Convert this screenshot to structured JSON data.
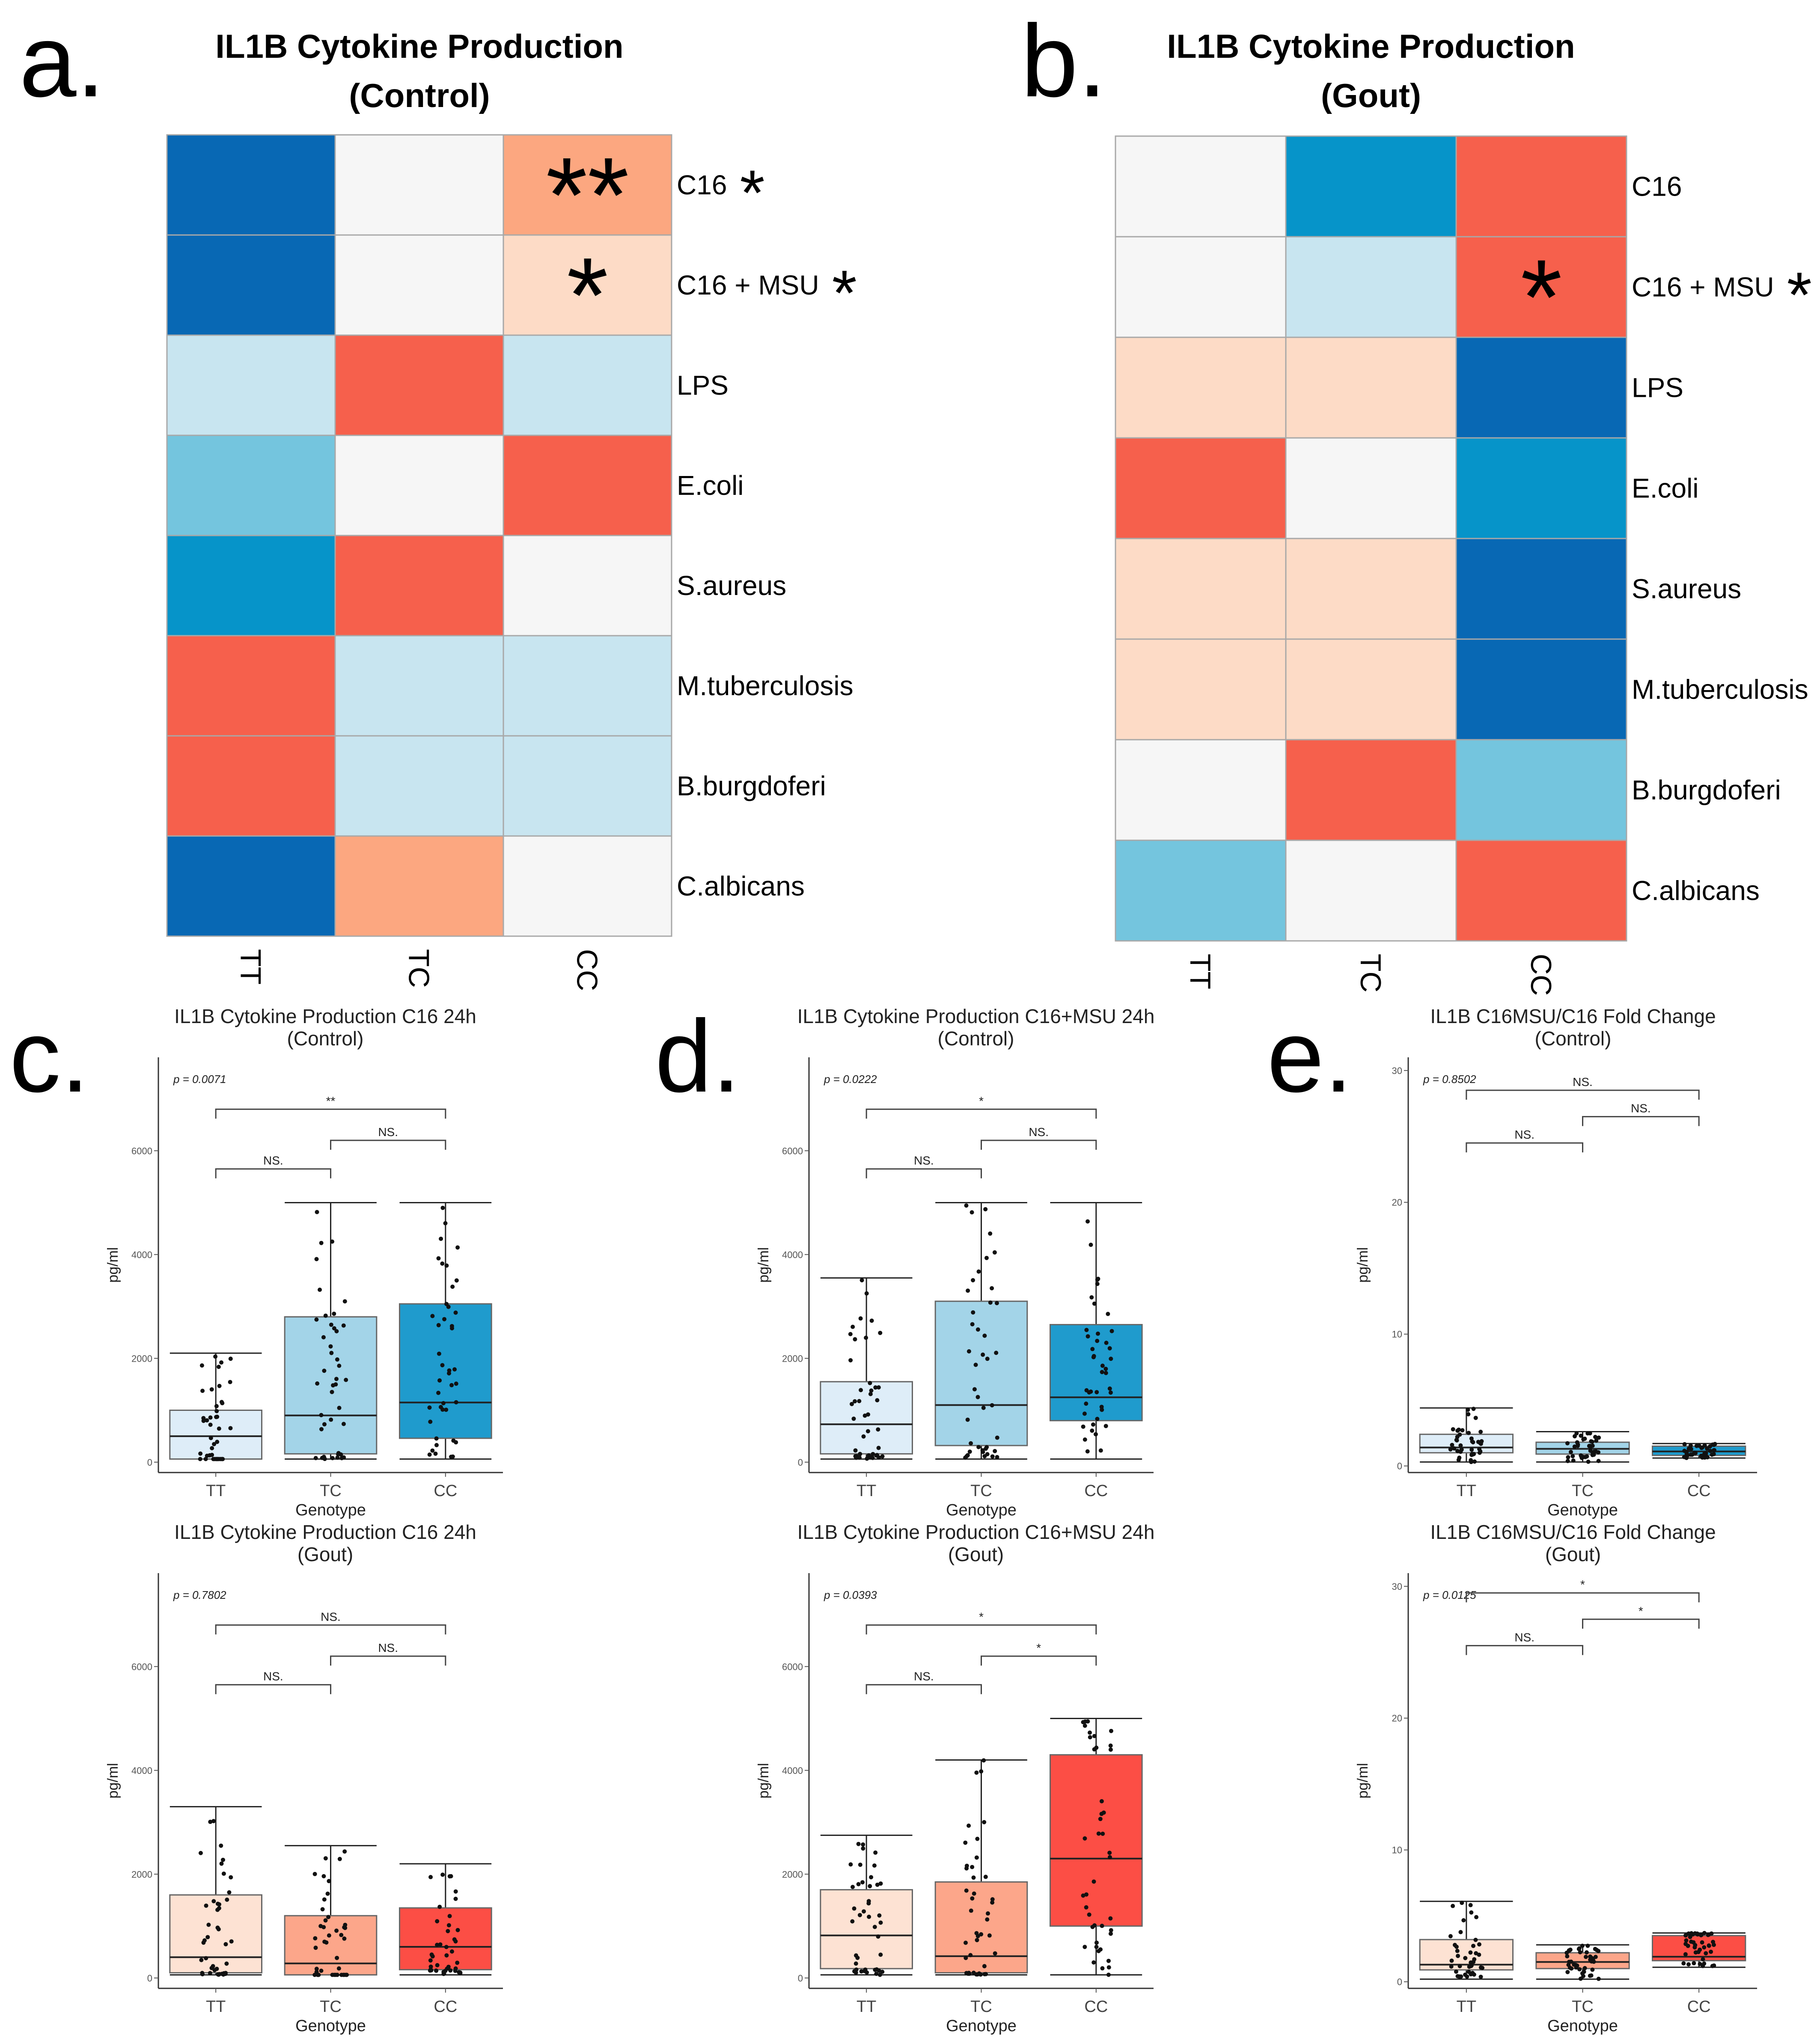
{
  "panel_letters": [
    "a.",
    "b.",
    "c.",
    "d.",
    "e."
  ],
  "colors": {
    "dark_blue": "#0868b4",
    "mid_blue": "#0694c9",
    "light_blue": "#74c5de",
    "pale_blue": "#c8e5f0",
    "white": "#f6f6f6",
    "pale_red": "#fddbc6",
    "light_red": "#fca780",
    "red": "#f6604c",
    "box_tt_control": "#deedf8",
    "box_tc_control": "#a3d4e8",
    "box_cc_control": "#1f9bcd",
    "box_tt_gout": "#fde2d3",
    "box_tc_gout": "#fca68a",
    "box_cc_gout": "#fc4e45"
  },
  "chart_data": [
    {
      "type": "heatmap",
      "panel": "a.",
      "title": "IL1B Cytokine Production",
      "subtitle": "(Control)",
      "columns": [
        "TT",
        "TC",
        "CC"
      ],
      "rows": [
        "C16",
        "C16 + MSU",
        "LPS",
        "E.coli",
        "S.aureus",
        "M.tuberculosis",
        "B.burgdoferi",
        "C.albicans"
      ],
      "row_marks": [
        "*",
        "*",
        "",
        "",
        "",
        "",
        "",
        ""
      ],
      "cells": [
        [
          "dark_blue",
          "white",
          "light_red"
        ],
        [
          "dark_blue",
          "white",
          "pale_red"
        ],
        [
          "pale_blue",
          "red",
          "pale_blue"
        ],
        [
          "light_blue",
          "white",
          "red"
        ],
        [
          "mid_blue",
          "red",
          "white"
        ],
        [
          "red",
          "pale_blue",
          "pale_blue"
        ],
        [
          "red",
          "pale_blue",
          "pale_blue"
        ],
        [
          "dark_blue",
          "light_red",
          "white"
        ]
      ],
      "cell_marks": [
        [
          "",
          "",
          "**"
        ],
        [
          "",
          "",
          "*"
        ],
        [
          "",
          "",
          ""
        ],
        [
          "",
          "",
          ""
        ],
        [
          "",
          "",
          ""
        ],
        [
          "",
          "",
          ""
        ],
        [
          "",
          "",
          ""
        ],
        [
          "",
          "",
          ""
        ]
      ]
    },
    {
      "type": "heatmap",
      "panel": "b.",
      "title": "IL1B Cytokine Production",
      "subtitle": "(Gout)",
      "columns": [
        "TT",
        "TC",
        "CC"
      ],
      "rows": [
        "C16",
        "C16 + MSU",
        "LPS",
        "E.coli",
        "S.aureus",
        "M.tuberculosis",
        "B.burgdoferi",
        "C.albicans"
      ],
      "row_marks": [
        "",
        "*",
        "",
        "",
        "",
        "",
        "",
        ""
      ],
      "cells": [
        [
          "white",
          "mid_blue",
          "red"
        ],
        [
          "white",
          "pale_blue",
          "red"
        ],
        [
          "pale_red",
          "pale_red",
          "dark_blue"
        ],
        [
          "red",
          "white",
          "mid_blue"
        ],
        [
          "pale_red",
          "pale_red",
          "dark_blue"
        ],
        [
          "pale_red",
          "pale_red",
          "dark_blue"
        ],
        [
          "white",
          "red",
          "light_blue"
        ],
        [
          "light_blue",
          "white",
          "red"
        ]
      ],
      "cell_marks": [
        [
          "",
          "",
          ""
        ],
        [
          "",
          "",
          "*"
        ],
        [
          "",
          "",
          ""
        ],
        [
          "",
          "",
          ""
        ],
        [
          "",
          "",
          ""
        ],
        [
          "",
          "",
          ""
        ],
        [
          "",
          "",
          ""
        ],
        [
          "",
          "",
          ""
        ]
      ]
    },
    {
      "type": "box",
      "panel": "c.",
      "title": "IL1B Cytokine Production C16 24h",
      "subtitle": "(Control)",
      "xlabel": "Genotype",
      "ylabel": "pg/ml",
      "pvalue": "p = 0.0071",
      "categories": [
        "TT",
        "TC",
        "CC"
      ],
      "ylim": [
        -200,
        7800
      ],
      "yticks": [
        0,
        2000,
        4000,
        6000
      ],
      "fills": [
        "box_tt_control",
        "box_tc_control",
        "box_cc_control"
      ],
      "boxes": [
        {
          "q1": 60,
          "median": 500,
          "q3": 1000,
          "lo": 60,
          "hi": 2100
        },
        {
          "q1": 160,
          "median": 900,
          "q3": 2800,
          "lo": 60,
          "hi": 5000
        },
        {
          "q1": 460,
          "median": 1150,
          "q3": 3050,
          "lo": 60,
          "hi": 5000
        }
      ],
      "brackets": [
        {
          "from": 0,
          "to": 1,
          "y": 5650,
          "label": "NS."
        },
        {
          "from": 1,
          "to": 2,
          "y": 6200,
          "label": "NS."
        },
        {
          "from": 0,
          "to": 2,
          "y": 6800,
          "label": "**"
        }
      ]
    },
    {
      "type": "box",
      "panel": "d.",
      "title": "IL1B Cytokine Production C16+MSU 24h",
      "subtitle": "(Control)",
      "xlabel": "Genotype",
      "ylabel": "pg/ml",
      "pvalue": "p = 0.0222",
      "categories": [
        "TT",
        "TC",
        "CC"
      ],
      "ylim": [
        -200,
        7800
      ],
      "yticks": [
        0,
        2000,
        4000,
        6000
      ],
      "fills": [
        "box_tt_control",
        "box_tc_control",
        "box_cc_control"
      ],
      "boxes": [
        {
          "q1": 160,
          "median": 730,
          "q3": 1550,
          "lo": 60,
          "hi": 3550
        },
        {
          "q1": 320,
          "median": 1100,
          "q3": 3100,
          "lo": 60,
          "hi": 5000
        },
        {
          "q1": 800,
          "median": 1250,
          "q3": 2650,
          "lo": 60,
          "hi": 5000
        }
      ],
      "brackets": [
        {
          "from": 0,
          "to": 1,
          "y": 5650,
          "label": "NS."
        },
        {
          "from": 1,
          "to": 2,
          "y": 6200,
          "label": "NS."
        },
        {
          "from": 0,
          "to": 2,
          "y": 6800,
          "label": "*"
        }
      ]
    },
    {
      "type": "box",
      "panel": "e.",
      "title": "IL1B C16MSU/C16 Fold Change",
      "subtitle": "(Control)",
      "xlabel": "Genotype",
      "ylabel": "pg/ml",
      "pvalue": "p = 0.8502",
      "categories": [
        "TT",
        "TC",
        "CC"
      ],
      "ylim": [
        -0.5,
        31
      ],
      "yticks": [
        0,
        10,
        20,
        30
      ],
      "fills": [
        "box_tt_control",
        "box_tc_control",
        "box_cc_control"
      ],
      "boxes": [
        {
          "q1": 1.0,
          "median": 1.4,
          "q3": 2.4,
          "lo": 0.3,
          "hi": 4.4
        },
        {
          "q1": 0.9,
          "median": 1.3,
          "q3": 1.8,
          "lo": 0.3,
          "hi": 2.6
        },
        {
          "q1": 0.8,
          "median": 1.1,
          "q3": 1.5,
          "lo": 0.6,
          "hi": 1.7
        }
      ],
      "brackets": [
        {
          "from": 0,
          "to": 1,
          "y": 24.5,
          "label": "NS."
        },
        {
          "from": 1,
          "to": 2,
          "y": 26.5,
          "label": "NS."
        },
        {
          "from": 0,
          "to": 2,
          "y": 28.5,
          "label": "NS."
        }
      ]
    },
    {
      "type": "box",
      "panel": "c.",
      "title": "IL1B Cytokine Production C16 24h",
      "subtitle": "(Gout)",
      "xlabel": "Genotype",
      "ylabel": "pg/ml",
      "pvalue": "p = 0.7802",
      "categories": [
        "TT",
        "TC",
        "CC"
      ],
      "ylim": [
        -200,
        7800
      ],
      "yticks": [
        0,
        2000,
        4000,
        6000
      ],
      "fills": [
        "box_tt_gout",
        "box_tc_gout",
        "box_cc_gout"
      ],
      "boxes": [
        {
          "q1": 100,
          "median": 400,
          "q3": 1600,
          "lo": 60,
          "hi": 3300
        },
        {
          "q1": 60,
          "median": 280,
          "q3": 1200,
          "lo": 60,
          "hi": 2550
        },
        {
          "q1": 160,
          "median": 600,
          "q3": 1350,
          "lo": 60,
          "hi": 2200
        }
      ],
      "brackets": [
        {
          "from": 0,
          "to": 1,
          "y": 5650,
          "label": "NS."
        },
        {
          "from": 1,
          "to": 2,
          "y": 6200,
          "label": "NS."
        },
        {
          "from": 0,
          "to": 2,
          "y": 6800,
          "label": "NS."
        }
      ]
    },
    {
      "type": "box",
      "panel": "d.",
      "title": "IL1B Cytokine Production C16+MSU 24h",
      "subtitle": "(Gout)",
      "xlabel": "Genotype",
      "ylabel": "pg/ml",
      "pvalue": "p = 0.0393",
      "categories": [
        "TT",
        "TC",
        "CC"
      ],
      "ylim": [
        -200,
        7800
      ],
      "yticks": [
        0,
        2000,
        4000,
        6000
      ],
      "fills": [
        "box_tt_gout",
        "box_tc_gout",
        "box_cc_gout"
      ],
      "boxes": [
        {
          "q1": 180,
          "median": 820,
          "q3": 1700,
          "lo": 60,
          "hi": 2750
        },
        {
          "q1": 100,
          "median": 420,
          "q3": 1850,
          "lo": 60,
          "hi": 4200
        },
        {
          "q1": 1000,
          "median": 2300,
          "q3": 4300,
          "lo": 60,
          "hi": 5000
        }
      ],
      "brackets": [
        {
          "from": 0,
          "to": 1,
          "y": 5650,
          "label": "NS."
        },
        {
          "from": 1,
          "to": 2,
          "y": 6200,
          "label": "*"
        },
        {
          "from": 0,
          "to": 2,
          "y": 6800,
          "label": "*"
        }
      ]
    },
    {
      "type": "box",
      "panel": "e.",
      "title": "IL1B C16MSU/C16 Fold Change",
      "subtitle": "(Gout)",
      "xlabel": "Genotype",
      "ylabel": "pg/ml",
      "pvalue": "p = 0.0125",
      "categories": [
        "TT",
        "TC",
        "CC"
      ],
      "ylim": [
        -0.5,
        31
      ],
      "yticks": [
        0,
        10,
        20,
        30
      ],
      "fills": [
        "box_tt_gout",
        "box_tc_gout",
        "box_cc_gout"
      ],
      "boxes": [
        {
          "q1": 0.9,
          "median": 1.3,
          "q3": 3.2,
          "lo": 0.2,
          "hi": 6.1
        },
        {
          "q1": 1.0,
          "median": 1.5,
          "q3": 2.2,
          "lo": 0.2,
          "hi": 2.8
        },
        {
          "q1": 1.6,
          "median": 1.9,
          "q3": 3.5,
          "lo": 1.1,
          "hi": 3.7
        }
      ],
      "brackets": [
        {
          "from": 0,
          "to": 1,
          "y": 25.5,
          "label": "NS."
        },
        {
          "from": 1,
          "to": 2,
          "y": 27.5,
          "label": "*"
        },
        {
          "from": 0,
          "to": 2,
          "y": 29.5,
          "label": "*"
        }
      ]
    }
  ]
}
